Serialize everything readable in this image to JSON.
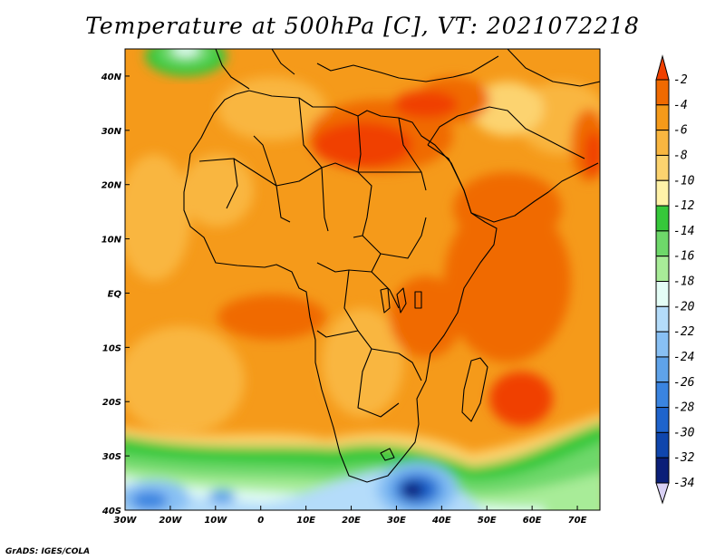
{
  "title": "Temperature at 500hPa [C], VT: 2021072218",
  "credit": "GrADS: IGES/COLA",
  "map": {
    "lon_range": [
      -30,
      75
    ],
    "lat_range": [
      -40,
      45
    ],
    "lon_ticks": [
      {
        "value": -30,
        "label": "30W"
      },
      {
        "value": -20,
        "label": "20W"
      },
      {
        "value": -10,
        "label": "10W"
      },
      {
        "value": 0,
        "label": "0"
      },
      {
        "value": 10,
        "label": "10E"
      },
      {
        "value": 20,
        "label": "20E"
      },
      {
        "value": 30,
        "label": "30E"
      },
      {
        "value": 40,
        "label": "40E"
      },
      {
        "value": 50,
        "label": "50E"
      },
      {
        "value": 60,
        "label": "60E"
      },
      {
        "value": 70,
        "label": "70E"
      }
    ],
    "lat_ticks": [
      {
        "value": 40,
        "label": "40N"
      },
      {
        "value": 30,
        "label": "30N"
      },
      {
        "value": 20,
        "label": "20N"
      },
      {
        "value": 10,
        "label": "10N"
      },
      {
        "value": 0,
        "label": "EQ"
      },
      {
        "value": -10,
        "label": "10S"
      },
      {
        "value": -20,
        "label": "20S"
      },
      {
        "value": -30,
        "label": "30S"
      },
      {
        "value": -40,
        "label": "40S"
      }
    ]
  },
  "colorbar": {
    "levels": [
      "-2",
      "-4",
      "-6",
      "-8",
      "-10",
      "-12",
      "-14",
      "-16",
      "-18",
      "-20",
      "-22",
      "-24",
      "-26",
      "-28",
      "-30",
      "-32",
      "-34"
    ],
    "colors": [
      "#f04000",
      "#f06a00",
      "#f59a1a",
      "#f9b640",
      "#fcd36f",
      "#fff2a8",
      "#36c83a",
      "#6ed86a",
      "#a8ec98",
      "#e4fdf6",
      "#b4dcfa",
      "#88c0f4",
      "#5fa3ea",
      "#3a84e0",
      "#1f64cc",
      "#0f46ad",
      "#0b1f78"
    ]
  }
}
